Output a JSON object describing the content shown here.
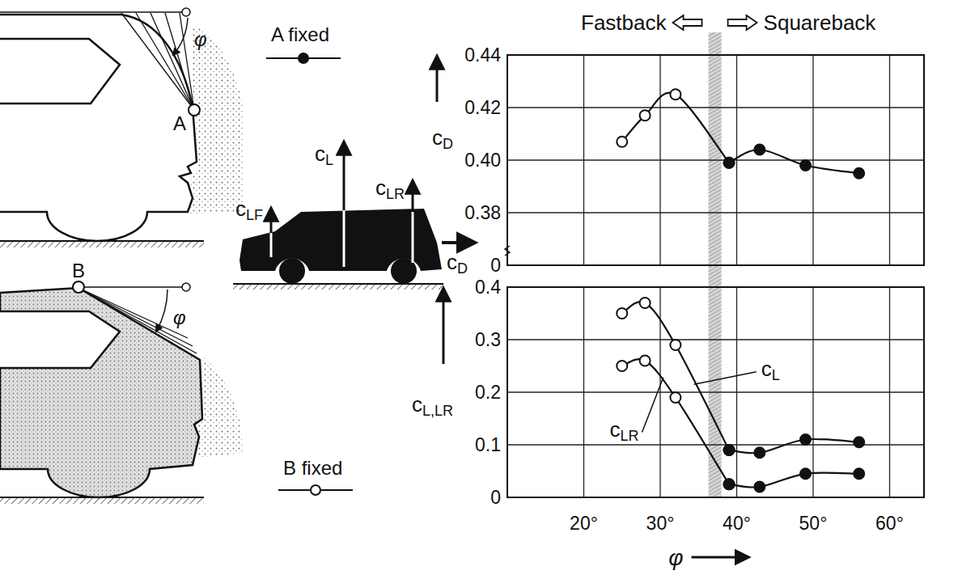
{
  "sketches": {
    "point_a": "A",
    "point_b": "B",
    "angle": "φ"
  },
  "forces": {
    "lift": "cL",
    "lift_front": "cLF",
    "lift_rear": "cLR",
    "drag": "cD"
  },
  "chart_data": [
    {
      "type": "line",
      "y_label": "cD",
      "region_labels": [
        "Fastback",
        "Squareback"
      ],
      "transition_band": [
        36.3,
        38.0
      ],
      "xlim": [
        10,
        64.5
      ],
      "xticks": [
        20,
        30,
        40,
        50,
        60
      ],
      "ylim": [
        0.36,
        0.44
      ],
      "yticks": [
        0.38,
        {
          "value": 0.4,
          "label": "0.40"
        },
        0.42,
        0.44
      ],
      "break_label": "0",
      "grid": true,
      "tick_labels": "y",
      "series": [
        {
          "name": "B fixed",
          "marker": "circle-open",
          "x": [
            25,
            28,
            32,
            39
          ],
          "values": [
            0.407,
            0.417,
            0.425,
            0.399
          ]
        },
        {
          "name": "A fixed",
          "marker": "circle",
          "x": [
            39,
            43,
            49,
            56
          ],
          "values": [
            0.399,
            0.404,
            0.398,
            0.395
          ]
        }
      ]
    },
    {
      "type": "line",
      "x_label": "φ",
      "y_label": "cL,LR",
      "xlim": [
        10,
        64.5
      ],
      "xticks": [
        {
          "value": 20,
          "label": "20°"
        },
        {
          "value": 30,
          "label": "30°"
        },
        {
          "value": 40,
          "label": "40°"
        },
        {
          "value": 50,
          "label": "50°"
        },
        {
          "value": 60,
          "label": "60°"
        }
      ],
      "ylim": [
        0,
        0.4
      ],
      "yticks": [
        0,
        0.1,
        0.2,
        0.3,
        0.4
      ],
      "grid": true,
      "series": [
        {
          "name": "cL",
          "marker": "circle-open",
          "x": [
            25,
            28,
            32,
            39
          ],
          "values": [
            0.35,
            0.37,
            0.29,
            0.09
          ]
        },
        {
          "marker": "circle",
          "x": [
            39,
            43,
            49,
            56
          ],
          "values": [
            0.09,
            0.085,
            0.11,
            0.105
          ]
        },
        {
          "name": "cLR",
          "marker": "circle-open",
          "x": [
            25,
            28,
            32,
            39
          ],
          "values": [
            0.25,
            0.26,
            0.19,
            0.025
          ]
        },
        {
          "marker": "circle",
          "x": [
            39,
            43,
            49,
            56
          ],
          "values": [
            0.025,
            0.02,
            0.045,
            0.045
          ]
        }
      ]
    }
  ]
}
